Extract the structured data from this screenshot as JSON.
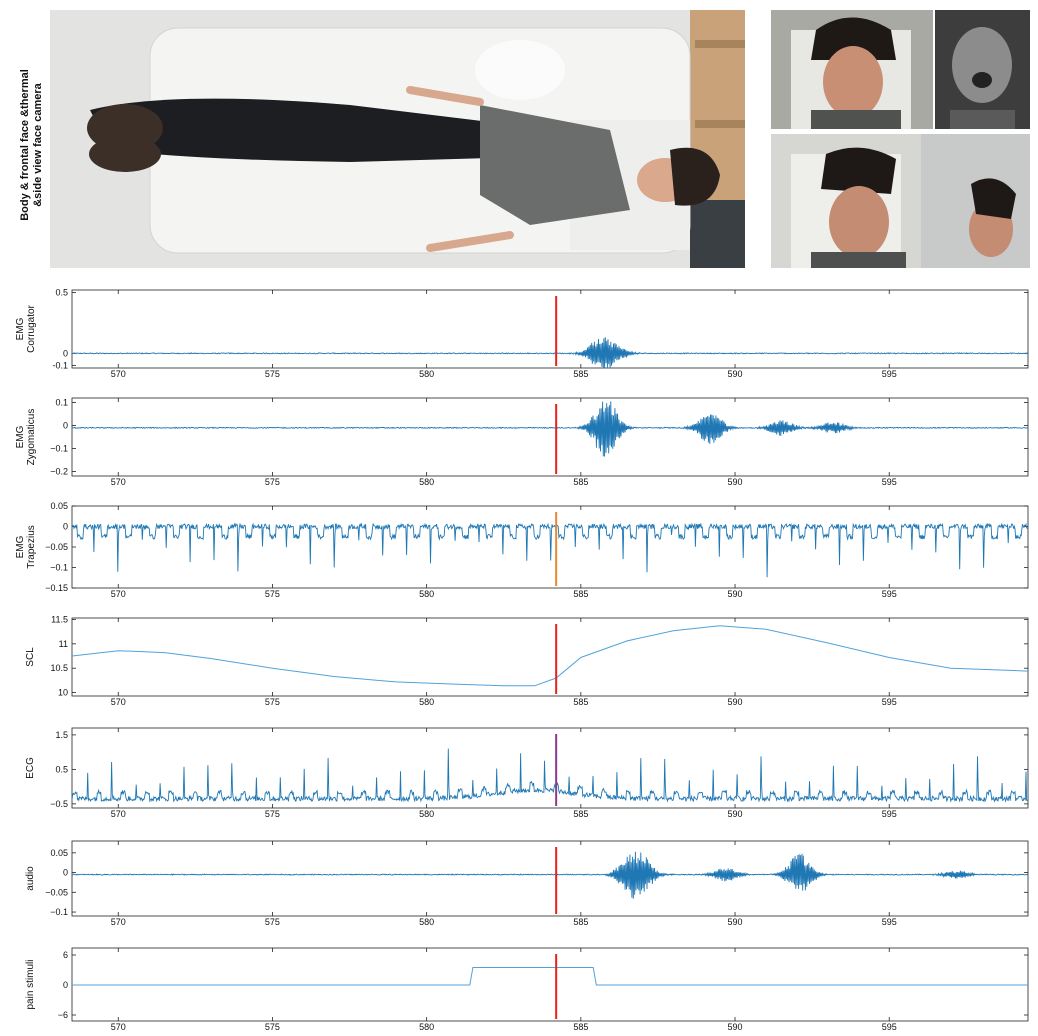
{
  "video_panel": {
    "label_line1": "Body & frontal face &thermal",
    "label_line2": "&side view face camera"
  },
  "colors": {
    "signal": "#1f77b4",
    "signal_light": "#4fa3dc",
    "stimulus_marker": "#e8221b",
    "ecg_marker": "#8b3a8b",
    "trapezius_marker": "#e8892b",
    "axis": "#222222"
  },
  "chart_data": [
    {
      "type": "line",
      "ylabel": "EMG\nCorrugator",
      "xlim": [
        568.5,
        599.5
      ],
      "ylim": [
        -0.12,
        0.52
      ],
      "xticks": [
        570,
        575,
        580,
        585,
        590,
        595
      ],
      "yticks": [
        {
          "v": 0.5,
          "label": "0.5"
        },
        {
          "v": 0,
          "label": "0"
        },
        {
          "v": -0.1,
          "label": "-0.1"
        }
      ],
      "baseline": 0.0,
      "events": [
        {
          "x": 585.7,
          "amp": 0.1
        },
        {
          "x": 586.1,
          "amp": 0.06
        },
        {
          "x": 585.5,
          "amp": 0.04
        }
      ],
      "marker": 584.2
    },
    {
      "type": "line",
      "ylabel": "EMG\nZygomaticus",
      "xlim": [
        568.5,
        599.5
      ],
      "ylim": [
        -0.22,
        0.12
      ],
      "xticks": [
        570,
        575,
        580,
        585,
        590,
        595
      ],
      "yticks": [
        {
          "v": 0.1,
          "label": "0.1"
        },
        {
          "v": 0,
          "label": "0"
        },
        {
          "v": -0.1,
          "label": "−0.1"
        },
        {
          "v": -0.2,
          "label": "−0.2"
        }
      ],
      "baseline": -0.01,
      "events": [
        {
          "x": 585.8,
          "amp": 0.15
        },
        {
          "x": 589.2,
          "amp": 0.08
        },
        {
          "x": 591.5,
          "amp": 0.04
        },
        {
          "x": 593.2,
          "amp": 0.03
        }
      ],
      "marker": 584.2
    },
    {
      "type": "line",
      "ylabel": "EMG\nTrapezius",
      "xlim": [
        568.5,
        599.5
      ],
      "ylim": [
        -0.15,
        0.05
      ],
      "xticks": [
        570,
        575,
        580,
        585,
        590,
        595
      ],
      "yticks": [
        {
          "v": 0.05,
          "label": "0.05"
        },
        {
          "v": 0,
          "label": "0"
        },
        {
          "v": -0.05,
          "label": "−0.05"
        },
        {
          "v": -0.1,
          "label": "−0.1"
        },
        {
          "v": -0.15,
          "label": "−0.15"
        }
      ],
      "baseline": 0.0,
      "beat_start": 569.2,
      "beat_interval": 0.78,
      "spike": -0.13,
      "marker": 584.2
    },
    {
      "type": "line",
      "ylabel": "SCL",
      "xlim": [
        568.5,
        599.5
      ],
      "ylim": [
        9.93,
        11.53
      ],
      "xticks": [
        570,
        575,
        580,
        585,
        590,
        595
      ],
      "yticks": [
        {
          "v": 11.5,
          "label": "11.5"
        },
        {
          "v": 11,
          "label": "11"
        },
        {
          "v": 10.5,
          "label": "10.5"
        },
        {
          "v": 10,
          "label": "10"
        }
      ],
      "x": [
        568.5,
        570,
        571.5,
        573,
        575,
        577,
        579,
        581,
        582.5,
        583.5,
        584.2,
        585,
        586.5,
        588,
        589.5,
        591,
        593,
        595,
        597,
        599.5
      ],
      "y": [
        10.75,
        10.86,
        10.82,
        10.7,
        10.5,
        10.33,
        10.22,
        10.17,
        10.14,
        10.14,
        10.3,
        10.72,
        11.06,
        11.27,
        11.37,
        11.3,
        11.02,
        10.72,
        10.5,
        10.44
      ],
      "marker": 584.2
    },
    {
      "type": "line",
      "ylabel": "ECG",
      "xlim": [
        568.5,
        599.5
      ],
      "ylim": [
        -0.62,
        1.7
      ],
      "xticks": [
        570,
        575,
        580,
        585,
        590,
        595
      ],
      "yticks": [
        {
          "v": 1.5,
          "label": "1.5"
        },
        {
          "v": 0.5,
          "label": "0.5"
        },
        {
          "v": -0.5,
          "label": "−0.5"
        }
      ],
      "baseline": -0.35,
      "beat_start": 569.0,
      "beat_interval": 0.78,
      "spike": 1.45,
      "marker": 584.2
    },
    {
      "type": "line",
      "ylabel": "audio",
      "xlim": [
        568.5,
        599.5
      ],
      "ylim": [
        -0.11,
        0.08
      ],
      "xticks": [
        570,
        575,
        580,
        585,
        590,
        595
      ],
      "yticks": [
        {
          "v": 0.05,
          "label": "0.05"
        },
        {
          "v": 0,
          "label": "0"
        },
        {
          "v": -0.05,
          "label": "−0.05"
        },
        {
          "v": -0.1,
          "label": "−0.1"
        }
      ],
      "baseline": -0.005,
      "events": [
        {
          "x": 586.6,
          "amp": 0.05
        },
        {
          "x": 587.0,
          "amp": 0.04
        },
        {
          "x": 589.7,
          "amp": 0.02
        },
        {
          "x": 592.1,
          "amp": 0.06
        },
        {
          "x": 597.2,
          "amp": 0.012
        }
      ],
      "marker": 584.2
    },
    {
      "type": "line",
      "ylabel": "pain stimuli",
      "xlim": [
        568.5,
        599.5
      ],
      "ylim": [
        -7.2,
        7.4
      ],
      "xticks": [
        570,
        575,
        580,
        585,
        590,
        595
      ],
      "yticks": [
        {
          "v": 6,
          "label": "6"
        },
        {
          "v": 0,
          "label": "0"
        },
        {
          "v": -6,
          "label": "−6"
        }
      ],
      "x": [
        568.5,
        581.4,
        581.5,
        585.4,
        585.5,
        599.5
      ],
      "y": [
        0,
        0,
        3.5,
        3.5,
        0,
        0
      ],
      "marker": 584.2
    }
  ]
}
